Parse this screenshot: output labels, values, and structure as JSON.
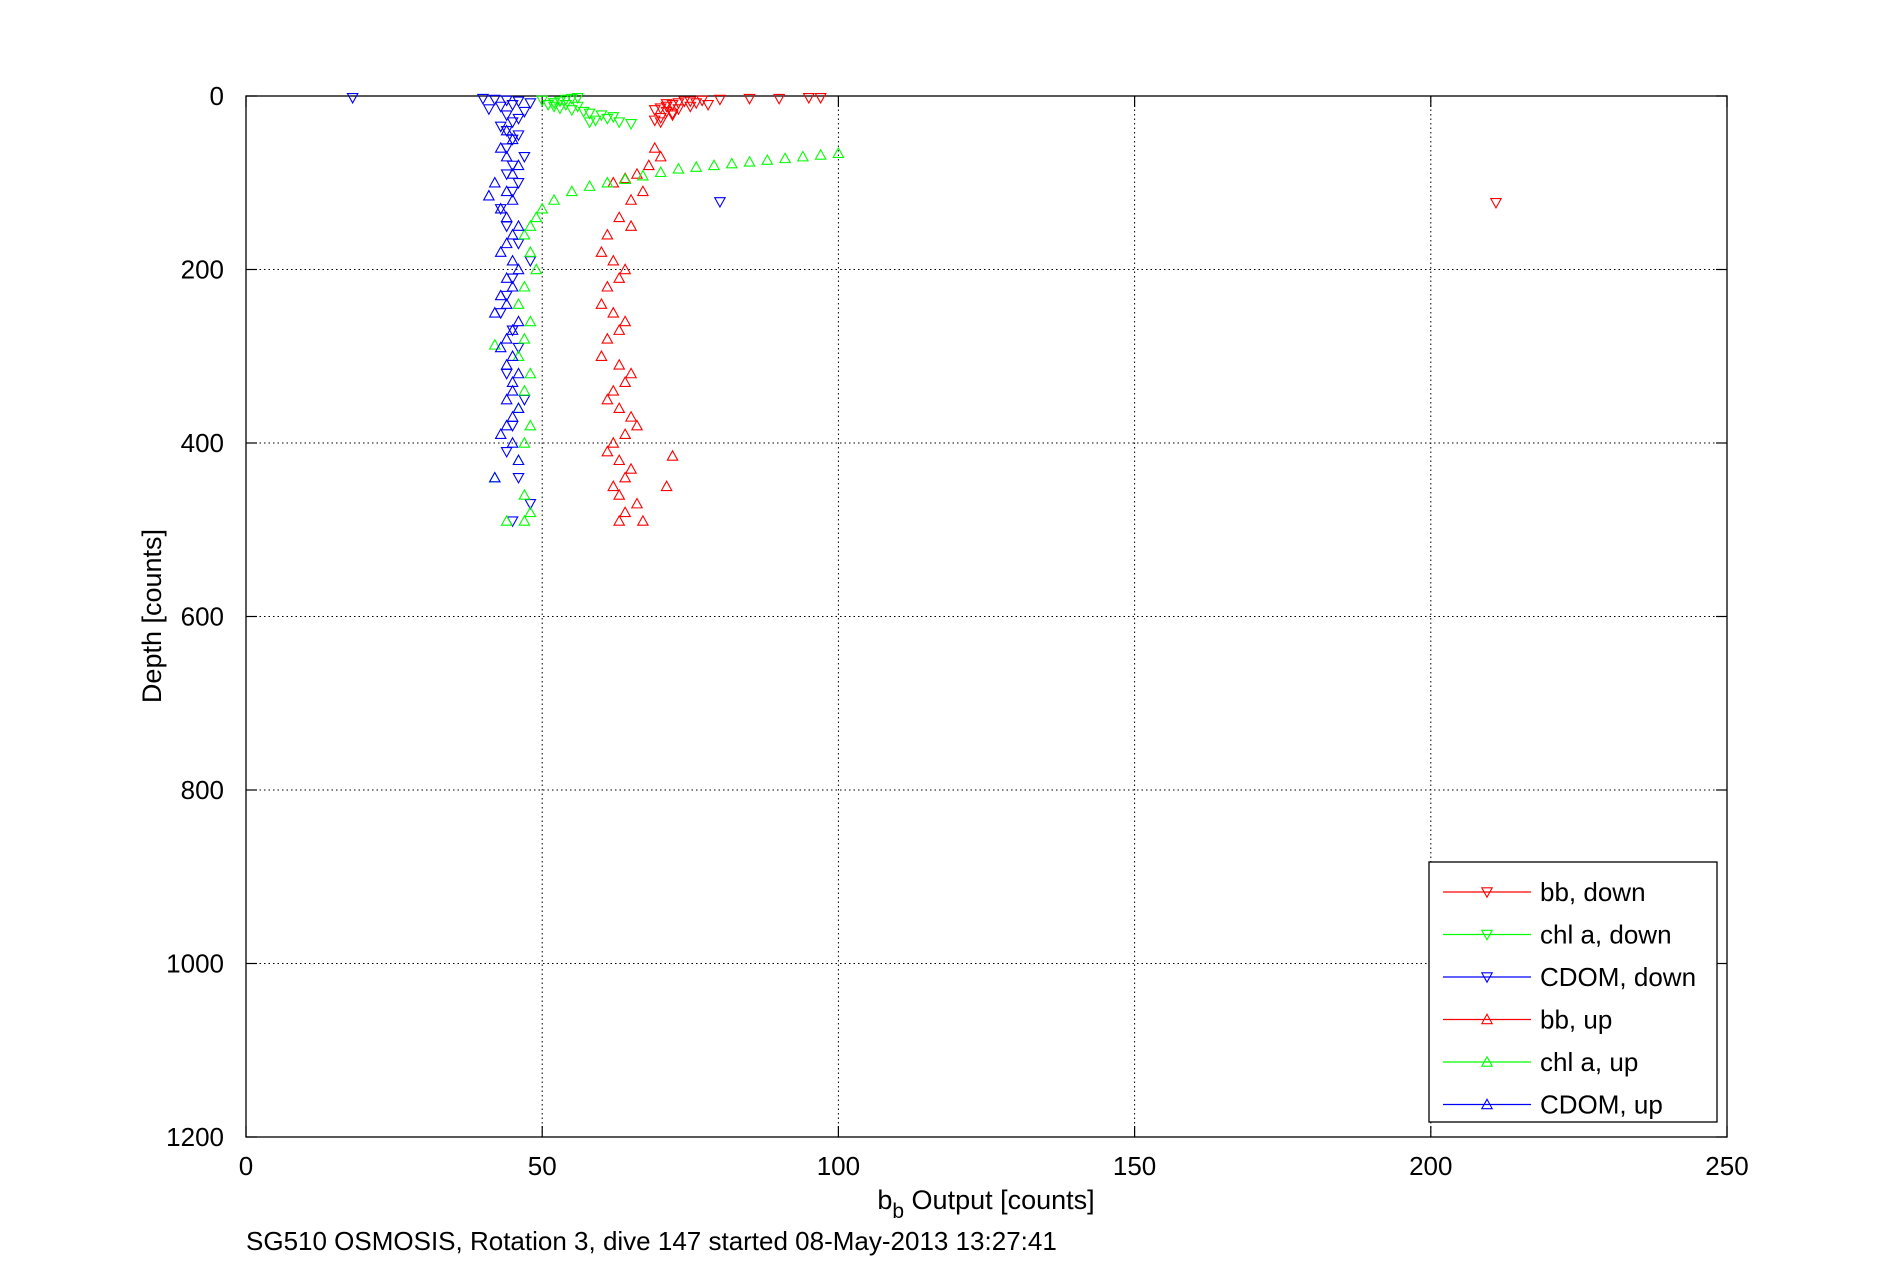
{
  "chart_data": {
    "type": "scatter",
    "title": "",
    "xlabel": "b",
    "xlabel_subscript": "b",
    "xlabel_suffix": " Output [counts]",
    "ylabel": "Depth [counts]",
    "caption": "SG510 OSMOSIS, Rotation 3, dive 147 started 08-May-2013 13:27:41",
    "xlim": [
      0,
      250
    ],
    "ylim": [
      0,
      1200
    ],
    "y_reversed": true,
    "xticks": [
      0,
      50,
      100,
      150,
      200,
      250
    ],
    "yticks": [
      0,
      200,
      400,
      600,
      800,
      1000,
      1200
    ],
    "xtick_labels": [
      "0",
      "50",
      "100",
      "150",
      "200",
      "250"
    ],
    "ytick_labels": [
      "0",
      "200",
      "400",
      "600",
      "800",
      "1000",
      "1200"
    ],
    "grid": true,
    "legend_position": "bottom-right",
    "colors": {
      "red": "#ff0000",
      "green": "#00ff00",
      "blue": "#0000ff"
    },
    "series": [
      {
        "name": "bb, down",
        "color": "#ff0000",
        "marker": "triangle-down",
        "x": [
          97,
          95,
          90,
          85,
          80,
          77,
          75,
          73,
          72,
          71,
          70,
          69,
          71,
          72,
          74,
          76,
          78,
          72,
          70,
          69,
          73,
          75,
          71,
          70,
          211
        ],
        "y": [
          2,
          2,
          3,
          3,
          4,
          5,
          6,
          8,
          10,
          12,
          14,
          16,
          18,
          20,
          6,
          8,
          10,
          22,
          25,
          28,
          15,
          12,
          9,
          30,
          123
        ]
      },
      {
        "name": "chl a, down",
        "color": "#00ff00",
        "marker": "triangle-down",
        "x": [
          56,
          55,
          54,
          53,
          52,
          51,
          52,
          53,
          55,
          57,
          58,
          60,
          62,
          61,
          59,
          56,
          54,
          52,
          58,
          63,
          65,
          50
        ],
        "y": [
          2,
          3,
          4,
          6,
          8,
          10,
          12,
          14,
          16,
          18,
          20,
          22,
          24,
          26,
          28,
          12,
          10,
          8,
          30,
          30,
          32,
          5
        ]
      },
      {
        "name": "CDOM, down",
        "color": "#0000ff",
        "marker": "triangle-down",
        "x": [
          18,
          40,
          42,
          44,
          46,
          48,
          45,
          43,
          41,
          47,
          44,
          46,
          45,
          43,
          44,
          46,
          45,
          44,
          47,
          45,
          44,
          46,
          45,
          43,
          44,
          46,
          48,
          45,
          44,
          43,
          45,
          46,
          44,
          47,
          45,
          44,
          46,
          48,
          45,
          80
        ],
        "y": [
          2,
          3,
          4,
          5,
          6,
          8,
          10,
          12,
          15,
          18,
          22,
          26,
          30,
          35,
          40,
          45,
          50,
          60,
          70,
          80,
          90,
          100,
          110,
          130,
          150,
          170,
          190,
          210,
          230,
          250,
          270,
          290,
          320,
          350,
          380,
          410,
          440,
          470,
          490,
          122
        ]
      },
      {
        "name": "bb, up",
        "color": "#ff0000",
        "marker": "triangle-up",
        "x": [
          62,
          64,
          66,
          68,
          70,
          69,
          67,
          65,
          63,
          61,
          60,
          62,
          64,
          63,
          61,
          60,
          62,
          64,
          63,
          61,
          60,
          63,
          65,
          64,
          62,
          61,
          63,
          65,
          66,
          64,
          62,
          61,
          63,
          65,
          64,
          62,
          63,
          66,
          72,
          71,
          64,
          67,
          63,
          65
        ],
        "y": [
          100,
          95,
          90,
          80,
          70,
          60,
          110,
          120,
          140,
          160,
          180,
          190,
          200,
          210,
          220,
          240,
          250,
          260,
          270,
          280,
          300,
          310,
          320,
          330,
          340,
          350,
          360,
          370,
          380,
          390,
          400,
          410,
          420,
          430,
          440,
          450,
          460,
          470,
          415,
          450,
          480,
          490,
          490,
          150
        ]
      },
      {
        "name": "chl a, up",
        "color": "#00ff00",
        "marker": "triangle-up",
        "x": [
          100,
          97,
          94,
          91,
          88,
          85,
          82,
          79,
          76,
          73,
          70,
          67,
          64,
          61,
          58,
          55,
          52,
          50,
          49,
          48,
          47,
          48,
          49,
          47,
          46,
          48,
          47,
          46,
          42,
          48,
          47,
          46,
          48,
          47,
          46,
          42,
          47,
          48,
          44,
          47
        ],
        "y": [
          66,
          68,
          70,
          72,
          74,
          76,
          78,
          80,
          82,
          84,
          88,
          92,
          96,
          100,
          104,
          110,
          120,
          130,
          140,
          150,
          160,
          180,
          200,
          220,
          240,
          260,
          280,
          300,
          287,
          320,
          340,
          360,
          380,
          400,
          420,
          440,
          460,
          480,
          490,
          490
        ]
      },
      {
        "name": "CDOM, up",
        "color": "#0000ff",
        "marker": "triangle-up",
        "x": [
          44,
          45,
          43,
          44,
          46,
          45,
          42,
          44,
          45,
          43,
          44,
          46,
          45,
          44,
          43,
          45,
          46,
          44,
          45,
          43,
          44,
          42,
          46,
          45,
          44,
          43,
          45,
          44,
          46,
          45,
          41,
          45,
          44,
          46,
          45,
          44,
          43,
          45,
          46,
          42
        ],
        "y": [
          40,
          50,
          60,
          70,
          80,
          90,
          100,
          110,
          120,
          130,
          140,
          150,
          160,
          170,
          180,
          190,
          200,
          210,
          220,
          230,
          240,
          250,
          260,
          270,
          280,
          290,
          300,
          310,
          320,
          330,
          115,
          340,
          350,
          360,
          370,
          380,
          390,
          400,
          420,
          440
        ]
      }
    ]
  }
}
